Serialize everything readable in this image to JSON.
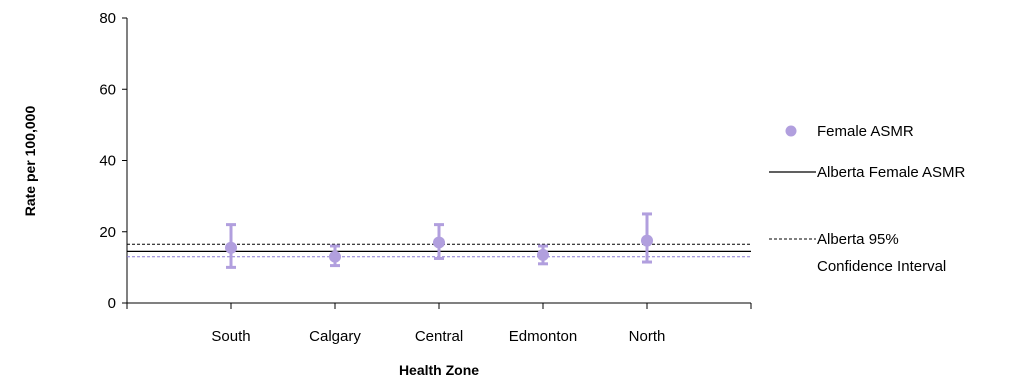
{
  "chart_data": {
    "type": "scatter",
    "xlabel": "Health Zone",
    "ylabel": "Rate per 100,000",
    "ylim": [
      0,
      80
    ],
    "yticks": [
      0,
      20,
      40,
      60,
      80
    ],
    "categories": [
      "South",
      "Calgary",
      "Central",
      "Edmonton",
      "North"
    ],
    "series": [
      {
        "name": "Female ASMR",
        "values": [
          15.5,
          13.0,
          17.0,
          13.5,
          17.5
        ],
        "lower": [
          10.0,
          10.5,
          12.5,
          11.0,
          11.5
        ],
        "upper": [
          22.0,
          16.0,
          22.0,
          16.0,
          25.0
        ]
      }
    ],
    "reference_lines": {
      "alberta_asmr": 14.5,
      "ci_upper": 16.5,
      "ci_lower": 13.0
    },
    "legend": {
      "placement": "right",
      "items": [
        {
          "label": "Female ASMR",
          "symbol": "marker"
        },
        {
          "label": "Alberta Female ASMR",
          "symbol": "solid-line"
        },
        {
          "label_lines": [
            "Alberta 95%",
            "Confidence Interval"
          ],
          "symbol": "dashed-line"
        }
      ]
    },
    "grid": false
  },
  "colors": {
    "marker": "#b19fde",
    "solid_line": "#000000",
    "ci_upper_line": "#000000",
    "ci_lower_line": "#8a7bd6"
  }
}
